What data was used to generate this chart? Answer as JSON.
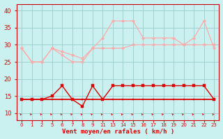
{
  "bg_color": "#caf0f0",
  "grid_color": "#99cccc",
  "xlabel": "Vent moyen/en rafales ( km/h )",
  "xlabel_color": "#dd0000",
  "ylim": [
    8,
    42
  ],
  "yticks": [
    10,
    15,
    20,
    25,
    30,
    35,
    40
  ],
  "x_labels": [
    "0",
    "1",
    "2",
    "5",
    "6",
    "7",
    "8",
    "9",
    "11",
    "13",
    "14",
    "15",
    "16",
    "17",
    "18",
    "19",
    "20",
    "21",
    "22",
    "23"
  ],
  "rafales1_y": [
    29,
    25,
    25,
    29,
    27,
    25,
    25,
    29,
    32,
    37,
    37,
    37,
    32,
    32,
    32,
    32,
    30,
    32,
    37,
    29
  ],
  "rafales2_y": [
    29,
    25,
    25,
    29,
    28,
    27,
    26,
    29,
    29,
    29,
    29,
    30,
    30,
    30,
    30,
    30,
    30,
    30,
    30,
    30
  ],
  "vent1_y": [
    14,
    14,
    14,
    15,
    18,
    14,
    12,
    18,
    14,
    18,
    18,
    18,
    18,
    18,
    18,
    18,
    18,
    18,
    18,
    14
  ],
  "vent2_y": [
    14,
    14,
    14,
    14,
    14,
    14,
    14,
    14,
    14,
    14,
    14,
    14,
    14,
    14,
    14,
    14,
    14,
    14,
    14,
    14
  ],
  "color_light": "#ffaaaa",
  "color_dark": "#dd0000",
  "color_spine": "#cc0000",
  "marker_size": 2.5,
  "lw_light": 0.9,
  "lw_dark": 1.0
}
